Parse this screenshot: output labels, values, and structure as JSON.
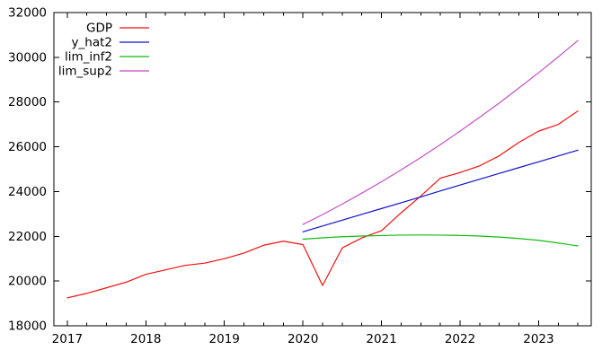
{
  "chart_data": {
    "type": "line",
    "title": "",
    "xlabel": "",
    "ylabel": "",
    "xlim": [
      2016.83,
      2023.67
    ],
    "ylim": [
      18000,
      32000
    ],
    "x_major_ticks": [
      2017,
      2018,
      2019,
      2020,
      2021,
      2022,
      2023
    ],
    "x_minor_tick_step": 0.25,
    "y_ticks": [
      18000,
      20000,
      22000,
      24000,
      26000,
      28000,
      30000,
      32000
    ],
    "grid": false,
    "legend_position": "top-left",
    "axis_color": "#000000",
    "series": [
      {
        "name": "GDP",
        "color": "#f01010",
        "x": [
          2017.0,
          2017.25,
          2017.5,
          2017.75,
          2018.0,
          2018.25,
          2018.5,
          2018.75,
          2019.0,
          2019.25,
          2019.5,
          2019.75,
          2020.0,
          2020.25,
          2020.5,
          2020.75,
          2021.0,
          2021.25,
          2021.5,
          2021.75,
          2022.0,
          2022.25,
          2022.5,
          2022.75,
          2023.0,
          2023.25,
          2023.5
        ],
        "values": [
          19250,
          19450,
          19700,
          19950,
          20300,
          20500,
          20700,
          20800,
          21000,
          21250,
          21600,
          21780,
          21630,
          19800,
          21480,
          21930,
          22250,
          23050,
          23800,
          24600,
          24850,
          25150,
          25600,
          26200,
          26700,
          27000,
          27600
        ]
      },
      {
        "name": "y_hat2",
        "color": "#1212cc",
        "x": [
          2020.0,
          2020.25,
          2020.5,
          2020.75,
          2021.0,
          2021.25,
          2021.5,
          2021.75,
          2022.0,
          2022.25,
          2022.5,
          2022.75,
          2023.0,
          2023.25,
          2023.5
        ],
        "values": [
          22200,
          22460,
          22720,
          22980,
          23240,
          23500,
          23760,
          24030,
          24290,
          24550,
          24810,
          25070,
          25330,
          25590,
          25850
        ]
      },
      {
        "name": "lim_inf2",
        "color": "#12bb12",
        "x": [
          2020.0,
          2020.25,
          2020.5,
          2020.75,
          2021.0,
          2021.25,
          2021.5,
          2021.75,
          2022.0,
          2022.25,
          2022.5,
          2022.75,
          2023.0,
          2023.25,
          2023.5
        ],
        "values": [
          21870,
          21930,
          21980,
          22010,
          22035,
          22055,
          22060,
          22055,
          22040,
          22010,
          21965,
          21900,
          21820,
          21700,
          21570
        ]
      },
      {
        "name": "lim_sup2",
        "color": "#c44fc6",
        "x": [
          2020.0,
          2020.25,
          2020.5,
          2020.75,
          2021.0,
          2021.25,
          2021.5,
          2021.75,
          2022.0,
          2022.25,
          2022.5,
          2022.75,
          2023.0,
          2023.25,
          2023.5
        ],
        "values": [
          22530,
          22970,
          23440,
          23930,
          24440,
          24970,
          25520,
          26100,
          26700,
          27320,
          27960,
          28630,
          29310,
          30020,
          30750
        ]
      }
    ]
  }
}
